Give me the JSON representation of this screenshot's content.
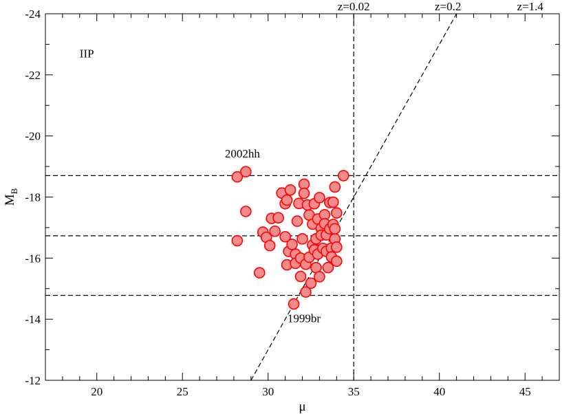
{
  "chart_data": {
    "type": "scatter",
    "title": "",
    "panel_label": "IIP",
    "xlabel": "μ",
    "ylabel_main": "M",
    "ylabel_sub": "B",
    "xlim": [
      17,
      47
    ],
    "ylim": [
      -12,
      -24
    ],
    "x_ticks": [
      20,
      25,
      30,
      35,
      40,
      45
    ],
    "x_tick_labels": [
      "20",
      "25",
      "30",
      "35",
      "40",
      "45"
    ],
    "y_ticks": [
      -12,
      -14,
      -16,
      -18,
      -20,
      -22,
      -24
    ],
    "y_tick_labels": [
      "-12",
      "-14",
      "-16",
      "-18",
      "-20",
      "-22",
      "-24"
    ],
    "grid": false,
    "marker_color": "#ff0000",
    "marker_fill": "#f28b8b",
    "reference_lines": {
      "horizontal": [
        -18.7,
        -16.73,
        -14.78
      ],
      "vertical": [
        35
      ],
      "diagonal": [
        [
          29.0,
          -12.0
        ],
        [
          41.0,
          -24.0
        ]
      ]
    },
    "top_labels": [
      {
        "x": 35.0,
        "text": "z=0.02"
      },
      {
        "x": 40.5,
        "text": "z=0.2"
      },
      {
        "x": 45.3,
        "text": "z=1.4"
      }
    ],
    "annotations": [
      {
        "x": 28.5,
        "y": -19.3,
        "text": "2002hh"
      },
      {
        "x": 32.1,
        "y": -13.9,
        "text": "1999br"
      }
    ],
    "series": [
      {
        "points": [
          [
            28.2,
            -18.66
          ],
          [
            28.7,
            -18.83
          ],
          [
            28.2,
            -16.57
          ],
          [
            28.7,
            -17.53
          ],
          [
            29.5,
            -15.52
          ],
          [
            29.7,
            -16.85
          ],
          [
            29.9,
            -16.68
          ],
          [
            30.1,
            -16.41
          ],
          [
            30.2,
            -17.3
          ],
          [
            30.4,
            -16.88
          ],
          [
            30.6,
            -17.32
          ],
          [
            30.8,
            -18.13
          ],
          [
            31.0,
            -17.78
          ],
          [
            31.1,
            -17.9
          ],
          [
            31.0,
            -16.7
          ],
          [
            31.2,
            -16.22
          ],
          [
            31.1,
            -15.78
          ],
          [
            31.3,
            -18.23
          ],
          [
            31.4,
            -16.45
          ],
          [
            31.5,
            -14.5
          ],
          [
            31.6,
            -16.13
          ],
          [
            31.6,
            -15.83
          ],
          [
            31.7,
            -17.21
          ],
          [
            31.8,
            -17.79
          ],
          [
            31.9,
            -16.0
          ],
          [
            31.9,
            -15.4
          ],
          [
            32.0,
            -16.63
          ],
          [
            32.1,
            -18.42
          ],
          [
            32.1,
            -18.12
          ],
          [
            32.2,
            -14.89
          ],
          [
            32.2,
            -15.8
          ],
          [
            32.3,
            -17.74
          ],
          [
            32.4,
            -17.41
          ],
          [
            32.4,
            -16.03
          ],
          [
            32.5,
            -15.18
          ],
          [
            32.6,
            -17.11
          ],
          [
            32.6,
            -16.43
          ],
          [
            32.7,
            -17.78
          ],
          [
            32.7,
            -16.27
          ],
          [
            32.8,
            -16.63
          ],
          [
            32.8,
            -15.69
          ],
          [
            32.9,
            -17.28
          ],
          [
            32.9,
            -16.13
          ],
          [
            33.0,
            -17.98
          ],
          [
            33.0,
            -15.39
          ],
          [
            33.1,
            -16.97
          ],
          [
            33.1,
            -16.75
          ],
          [
            33.2,
            -16.32
          ],
          [
            33.3,
            -17.42
          ],
          [
            33.3,
            -17.13
          ],
          [
            33.4,
            -16.76
          ],
          [
            33.4,
            -16.22
          ],
          [
            33.5,
            -15.69
          ],
          [
            33.6,
            -17.82
          ],
          [
            33.6,
            -16.96
          ],
          [
            33.7,
            -16.33
          ],
          [
            33.7,
            -16.04
          ],
          [
            33.8,
            -17.83
          ],
          [
            33.8,
            -17.1
          ],
          [
            33.9,
            -16.63
          ],
          [
            33.9,
            -16.96
          ],
          [
            34.0,
            -17.48
          ],
          [
            34.0,
            -16.36
          ],
          [
            34.0,
            -15.9
          ],
          [
            33.9,
            -18.33
          ],
          [
            34.4,
            -18.7
          ]
        ]
      }
    ]
  }
}
